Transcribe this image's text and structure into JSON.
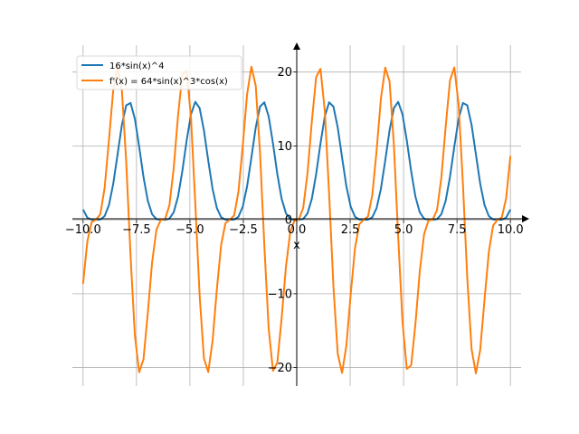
{
  "chart_data": {
    "type": "line",
    "title": "",
    "xlabel": "x",
    "ylabel": "",
    "grid": true,
    "legend_position": "top-left",
    "xlim": [
      -10.5,
      10.5
    ],
    "ylim": [
      -22.5,
      24
    ],
    "x_ticks": [
      {
        "value": -10,
        "label": "−10.0"
      },
      {
        "value": -7.5,
        "label": "−7.5"
      },
      {
        "value": -5,
        "label": "−5.0"
      },
      {
        "value": -2.5,
        "label": "−2.5"
      },
      {
        "value": 0,
        "label": "0.0"
      },
      {
        "value": 2.5,
        "label": "2.5"
      },
      {
        "value": 5,
        "label": "5.0"
      },
      {
        "value": 7.5,
        "label": "7.5"
      },
      {
        "value": 10,
        "label": "10.0"
      }
    ],
    "y_ticks": [
      {
        "value": -20,
        "label": "−20"
      },
      {
        "value": -10,
        "label": "−10"
      },
      {
        "value": 0,
        "label": "0"
      },
      {
        "value": 10,
        "label": "10"
      },
      {
        "value": 20,
        "label": "20"
      }
    ],
    "x_range": [
      -10,
      10
    ],
    "num_points": 100,
    "series": [
      {
        "name": "16*sin(x)^4",
        "expr": "16*sin(x)^4",
        "color": "#1f77b4"
      },
      {
        "name": "f'(x) = 64*sin(x)^3*cos(x)",
        "expr": "64*sin(x)^3*cos(x)",
        "color": "#ff7f0e"
      }
    ]
  }
}
